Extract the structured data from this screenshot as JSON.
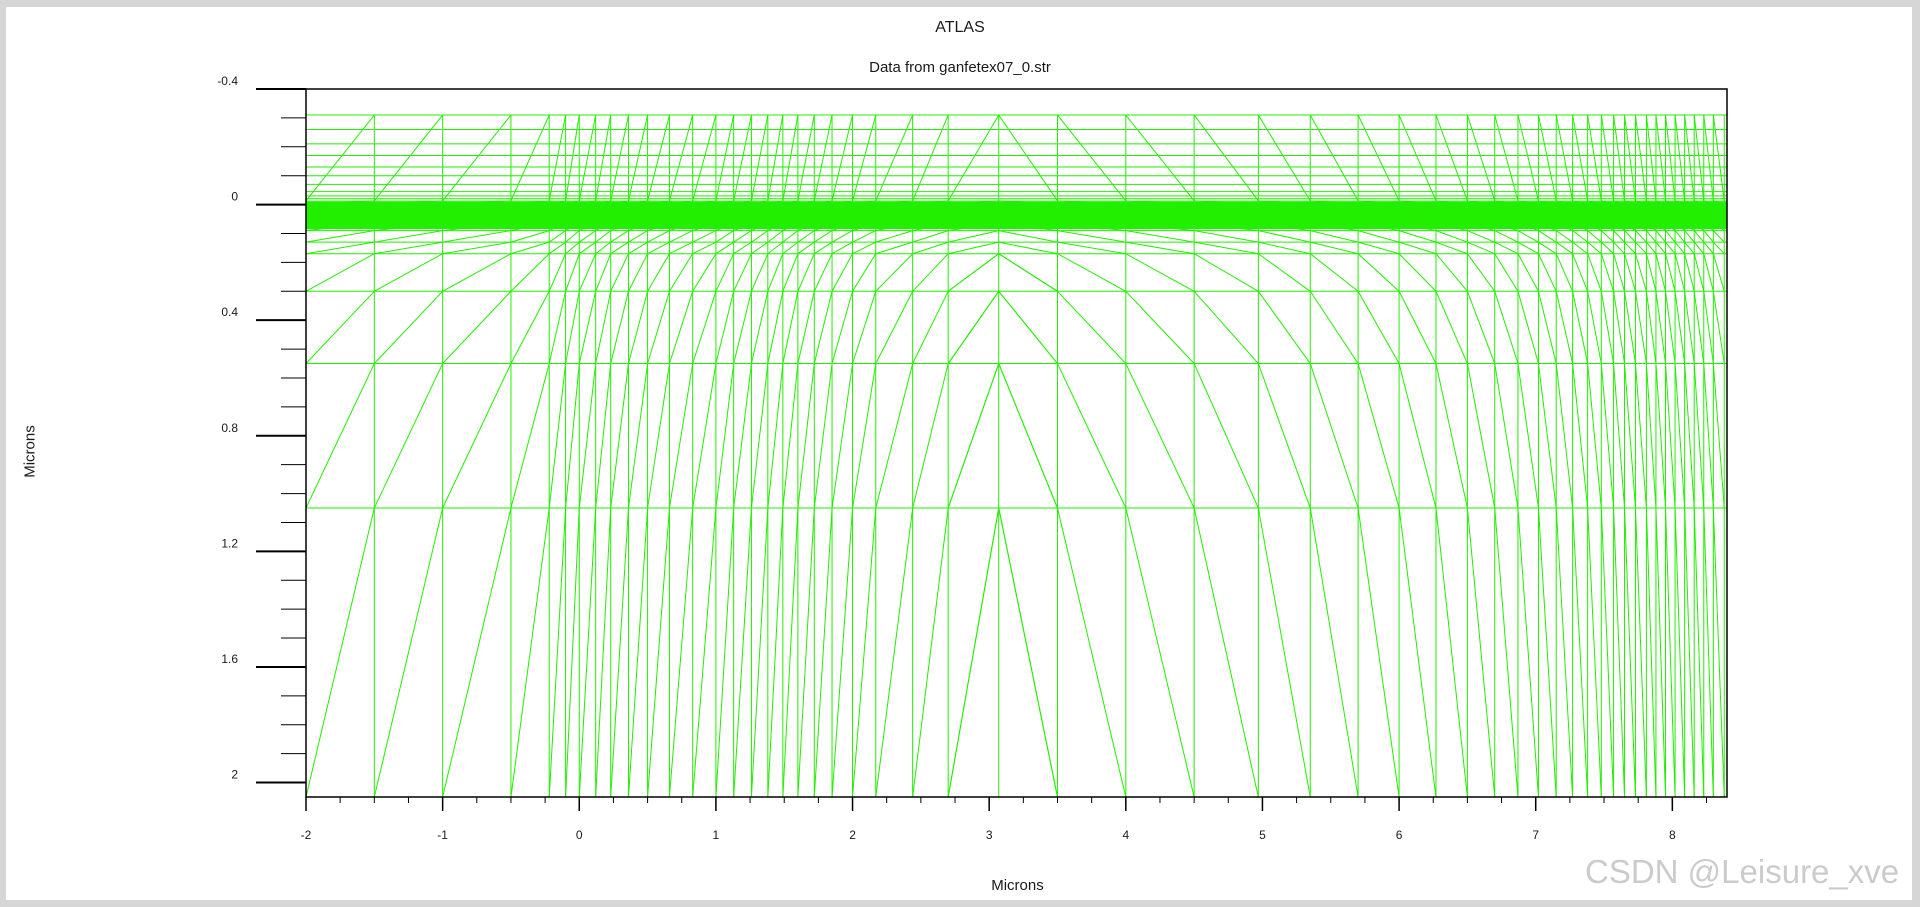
{
  "chart_data": {
    "type": "mesh",
    "title": "ATLAS",
    "subtitle": "Data from ganfetex07_0.str",
    "xlabel": "Microns",
    "ylabel": "Microns",
    "xlim": [
      -2,
      8.4
    ],
    "ylim": [
      -0.4,
      2.05
    ],
    "y_inverted": true,
    "x_ticks": [
      -2,
      -1,
      0,
      1,
      2,
      3,
      4,
      5,
      6,
      7,
      8
    ],
    "y_ticks": [
      -0.4,
      0,
      0.4,
      0.8,
      1.2,
      1.6,
      2
    ],
    "y_tick_labels": [
      "-0.4",
      "0",
      "0.4",
      "0.8",
      "1.2",
      "1.6",
      "2"
    ],
    "mesh_color": "#22ee00",
    "horizontal_lines_y": [
      -0.31,
      -0.26,
      -0.21,
      -0.17,
      -0.13,
      -0.1,
      -0.07,
      -0.045,
      -0.03,
      -0.02,
      -0.012,
      -0.005,
      0,
      0.005,
      0.012,
      0.02,
      0.03,
      0.045,
      0.065,
      0.09,
      0.13,
      0.17,
      0.3,
      0.55,
      1.05
    ],
    "dense_band": [
      -0.01,
      0.085
    ],
    "vertical_lines_x": [
      -2,
      -1.5,
      -1,
      -0.5,
      -0.22,
      -0.1,
      0,
      0.12,
      0.23,
      0.36,
      0.5,
      0.66,
      0.83,
      1.0,
      1.13,
      1.26,
      1.38,
      1.49,
      1.6,
      1.72,
      1.85,
      2.0,
      2.17,
      2.44,
      2.7,
      3.07,
      3.5,
      4.0,
      4.5,
      4.97,
      5.35,
      5.7,
      6.0,
      6.27,
      6.5,
      6.7,
      6.87,
      7.02,
      7.15,
      7.27,
      7.38,
      7.48,
      7.57,
      7.65,
      7.73,
      7.81,
      7.88,
      7.95,
      8.02,
      8.09,
      8.16,
      8.23,
      8.3,
      8.38
    ],
    "apex_x": 3.07
  },
  "watermark": "CSDN @Leisure_xve"
}
